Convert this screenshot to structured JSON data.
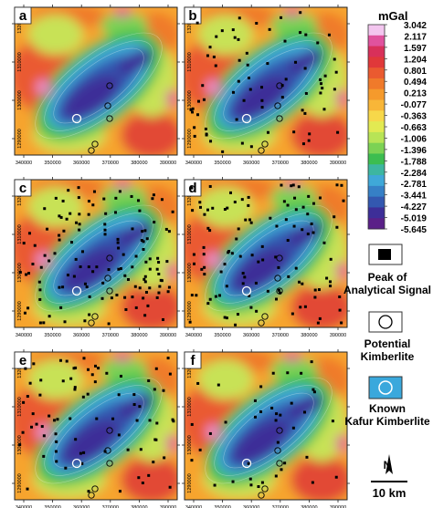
{
  "panels": [
    {
      "letter": "a",
      "density": 0.0
    },
    {
      "letter": "b",
      "density": 0.55
    },
    {
      "letter": "c",
      "density": 1.0
    },
    {
      "letter": "d",
      "density": 0.85
    },
    {
      "letter": "e",
      "density": 0.6
    },
    {
      "letter": "f",
      "density": 0.3
    }
  ],
  "x_ticks": [
    "340000",
    "350000",
    "360000",
    "370000",
    "380000",
    "390000"
  ],
  "y_ticks": [
    "1320000",
    "1310000",
    "1300000",
    "1290000"
  ],
  "colorbar": {
    "unit": "mGal",
    "labels": [
      "3.042",
      "2.117",
      "1.597",
      "1.204",
      "0.801",
      "0.494",
      "0.213",
      "-0.077",
      "-0.363",
      "-0.663",
      "-1.006",
      "-1.396",
      "-1.788",
      "-2.284",
      "-2.781",
      "-3.441",
      "-4.227",
      "-5.019",
      "-5.645"
    ],
    "colors": [
      "#f3c6ef",
      "#e0529e",
      "#d8305a",
      "#e0383a",
      "#ea5a30",
      "#f07a2a",
      "#f59a2c",
      "#f8b638",
      "#f7d84a",
      "#e2ea52",
      "#b8e456",
      "#7cd254",
      "#3cbd50",
      "#3db6a0",
      "#3fa8d8",
      "#3680c6",
      "#3358b0",
      "#3d2e98",
      "#5a2088"
    ]
  },
  "legend": {
    "peak_line1": "Peak of",
    "peak_line2": "Analytical Signal",
    "potential_line1": "Potential",
    "potential_line2": "Kimberlite",
    "known_line1": "Known",
    "known_line2": "Kafur Kimberlite"
  },
  "scale_label": "10 km",
  "north_label": "N"
}
